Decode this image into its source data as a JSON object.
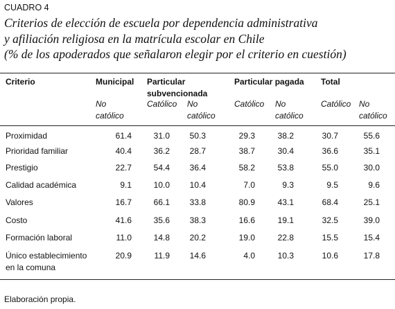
{
  "label": "CUADRO 4",
  "title": [
    "Criterios de elección de escuela por dependencia administrativa",
    "y afiliación religiosa en la matrícula escolar en Chile",
    "(% de los apoderados que señalaron elegir por el criterio en cuestión)"
  ],
  "table": {
    "header": [
      "Criterio",
      "Municipal",
      "Particular subvencionada",
      "Particular pagada",
      "Total"
    ],
    "subheader": [
      "No católico",
      "Católico",
      "No católico",
      "Católico",
      "No católico",
      "Católico",
      "No católico"
    ],
    "rows": [
      [
        "Proximidad",
        "61.4",
        "31.0",
        "50.3",
        "29.3",
        "38.2",
        "30.7",
        "55.6"
      ],
      [
        "Prioridad familiar",
        "40.4",
        "36.2",
        "28.7",
        "38.7",
        "30.4",
        "36.6",
        "35.1"
      ],
      [
        "Prestigio",
        "22.7",
        "54.4",
        "36.4",
        "58.2",
        "53.8",
        "55.0",
        "30.0"
      ],
      [
        "Calidad académica",
        "9.1",
        "10.0",
        "10.4",
        "7.0",
        "9.3",
        "9.5",
        "9.6"
      ],
      [
        "Valores",
        "16.7",
        "66.1",
        "33.8",
        "80.9",
        "43.1",
        "68.4",
        "25.1"
      ],
      [
        "Costo",
        "41.6",
        "35.6",
        "38.3",
        "16.6",
        "19.1",
        "32.5",
        "39.0"
      ],
      [
        "Formación laboral",
        "11.0",
        "14.8",
        "20.2",
        "19.0",
        "22.8",
        "15.5",
        "15.4"
      ],
      [
        "Único establecimiento en la comuna",
        "20.9",
        "11.9",
        "14.6",
        "4.0",
        "10.3",
        "10.6",
        "17.8"
      ]
    ]
  },
  "footer": "Elaboración propia."
}
